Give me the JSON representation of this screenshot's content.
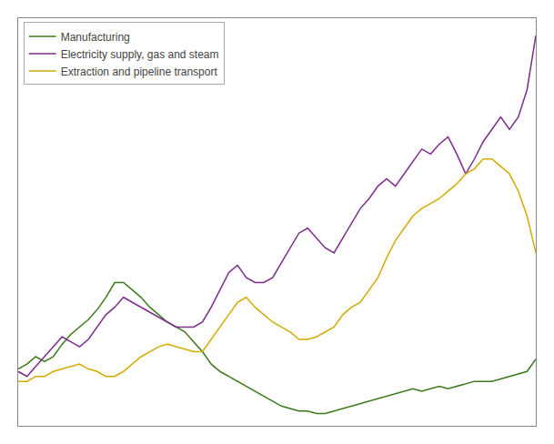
{
  "chart_data": {
    "type": "line",
    "x": [
      0,
      1,
      2,
      3,
      4,
      5,
      6,
      7,
      8,
      9,
      10,
      11,
      12,
      13,
      14,
      15,
      16,
      17,
      18,
      19,
      20,
      21,
      22,
      23,
      24,
      25,
      26,
      27,
      28,
      29,
      30,
      31,
      32,
      33,
      34,
      35,
      36,
      37,
      38,
      39,
      40,
      41,
      42,
      43,
      44,
      45,
      46,
      47,
      48,
      49,
      50,
      51,
      52,
      53,
      54,
      55,
      56,
      57,
      58,
      59
    ],
    "series": [
      {
        "name": "Manufacturing",
        "color": "#3a7a1a",
        "values": [
          83,
          85,
          88,
          86,
          88,
          93,
          97,
          100,
          103,
          107,
          112,
          118,
          118,
          115,
          112,
          108,
          105,
          102,
          100,
          98,
          94,
          90,
          85,
          82,
          80,
          78,
          76,
          74,
          72,
          70,
          68,
          67,
          66,
          66,
          65,
          65,
          66,
          67,
          68,
          69,
          70,
          71,
          72,
          73,
          74,
          75,
          74,
          75,
          76,
          75,
          76,
          77,
          78,
          78,
          78,
          79,
          80,
          81,
          82,
          87
        ]
      },
      {
        "name": "Electricity supply, gas and steam",
        "color": "#7b2d8b",
        "values": [
          82,
          80,
          84,
          88,
          92,
          96,
          94,
          92,
          95,
          100,
          105,
          108,
          112,
          110,
          108,
          106,
          104,
          102,
          100,
          100,
          100,
          102,
          108,
          115,
          122,
          125,
          120,
          118,
          118,
          120,
          126,
          132,
          138,
          140,
          136,
          132,
          130,
          136,
          142,
          148,
          152,
          157,
          160,
          157,
          162,
          167,
          172,
          170,
          174,
          177,
          170,
          162,
          168,
          175,
          180,
          185,
          180,
          185,
          196,
          218
        ]
      },
      {
        "name": "Extraction and pipeline transport",
        "color": "#d4aa00",
        "values": [
          78,
          78,
          80,
          80,
          82,
          83,
          84,
          85,
          83,
          82,
          80,
          80,
          82,
          85,
          88,
          90,
          92,
          93,
          92,
          91,
          90,
          90,
          95,
          100,
          105,
          110,
          112,
          108,
          105,
          102,
          100,
          98,
          95,
          95,
          96,
          98,
          100,
          105,
          108,
          110,
          115,
          120,
          128,
          135,
          140,
          145,
          148,
          150,
          152,
          155,
          158,
          162,
          164,
          168,
          168,
          165,
          162,
          155,
          145,
          130
        ]
      }
    ],
    "xlim": [
      0,
      59
    ],
    "ylim": [
      60,
      225
    ],
    "tick_labels": false,
    "grid": false,
    "legend": "upper left"
  }
}
